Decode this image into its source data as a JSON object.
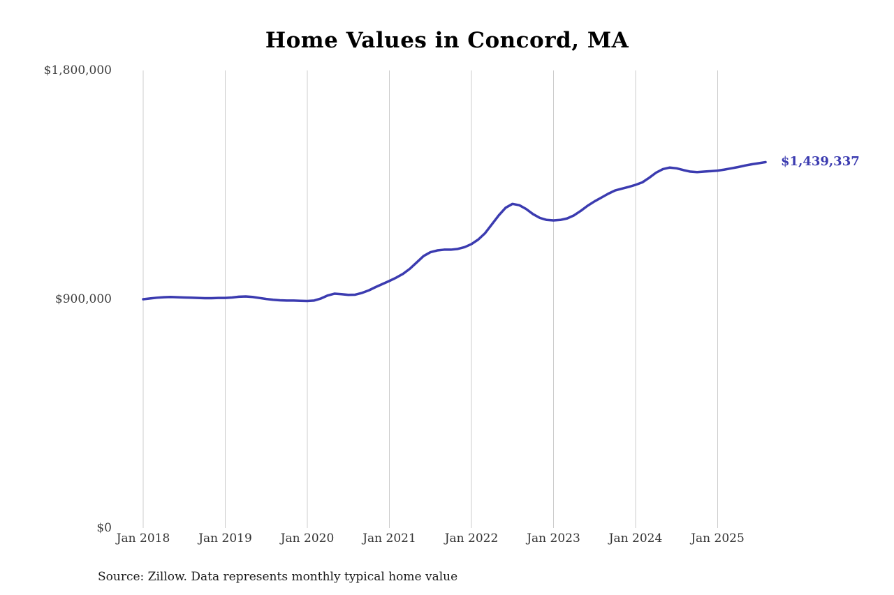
{
  "title": "Home Values in Concord, MA",
  "source_note": "Source: Zillow. Data represents monthly typical home value",
  "end_label": "$1,439,337",
  "colors": {
    "line": "#3b3bb0",
    "gridline": "#cccccc",
    "end_label": "#3b3bb0"
  },
  "chart_data": {
    "type": "line",
    "title": "Home Values in Concord, MA",
    "xlabel": "",
    "ylabel": "",
    "ylim": [
      0,
      1800000
    ],
    "grid": "vertical-yearly",
    "legend_position": "none",
    "x_start_month": "2018-01",
    "x_end_month": "2025-08",
    "x_tick_labels": [
      "Jan 2018",
      "Jan 2019",
      "Jan 2020",
      "Jan 2021",
      "Jan 2022",
      "Jan 2023",
      "Jan 2024",
      "Jan 2025"
    ],
    "y_ticks": [
      {
        "value": 0,
        "label": "$0"
      },
      {
        "value": 900000,
        "label": "$900,000"
      },
      {
        "value": 1800000,
        "label": "$1,800,000"
      }
    ],
    "annotation": {
      "text": "$1,439,337",
      "value": 1439337
    },
    "series": [
      {
        "name": "Monthly typical home value",
        "color": "#3b3bb0",
        "values": [
          900000,
          903000,
          906000,
          908000,
          909000,
          908000,
          907000,
          906000,
          905000,
          904000,
          904000,
          905000,
          905000,
          907000,
          910000,
          911000,
          909000,
          905000,
          901000,
          898000,
          896000,
          895000,
          895000,
          894000,
          893000,
          895000,
          903000,
          915000,
          922000,
          920000,
          917000,
          918000,
          925000,
          935000,
          948000,
          960000,
          972000,
          985000,
          1000000,
          1020000,
          1045000,
          1070000,
          1085000,
          1092000,
          1095000,
          1095000,
          1098000,
          1105000,
          1117000,
          1135000,
          1160000,
          1195000,
          1230000,
          1260000,
          1275000,
          1270000,
          1255000,
          1235000,
          1220000,
          1212000,
          1210000,
          1212000,
          1218000,
          1230000,
          1248000,
          1268000,
          1285000,
          1300000,
          1315000,
          1328000,
          1335000,
          1342000,
          1350000,
          1360000,
          1378000,
          1398000,
          1412000,
          1418000,
          1415000,
          1408000,
          1402000,
          1400000,
          1402000,
          1404000,
          1406000,
          1410000,
          1415000,
          1420000,
          1426000,
          1431000,
          1435000,
          1439337
        ]
      }
    ]
  }
}
